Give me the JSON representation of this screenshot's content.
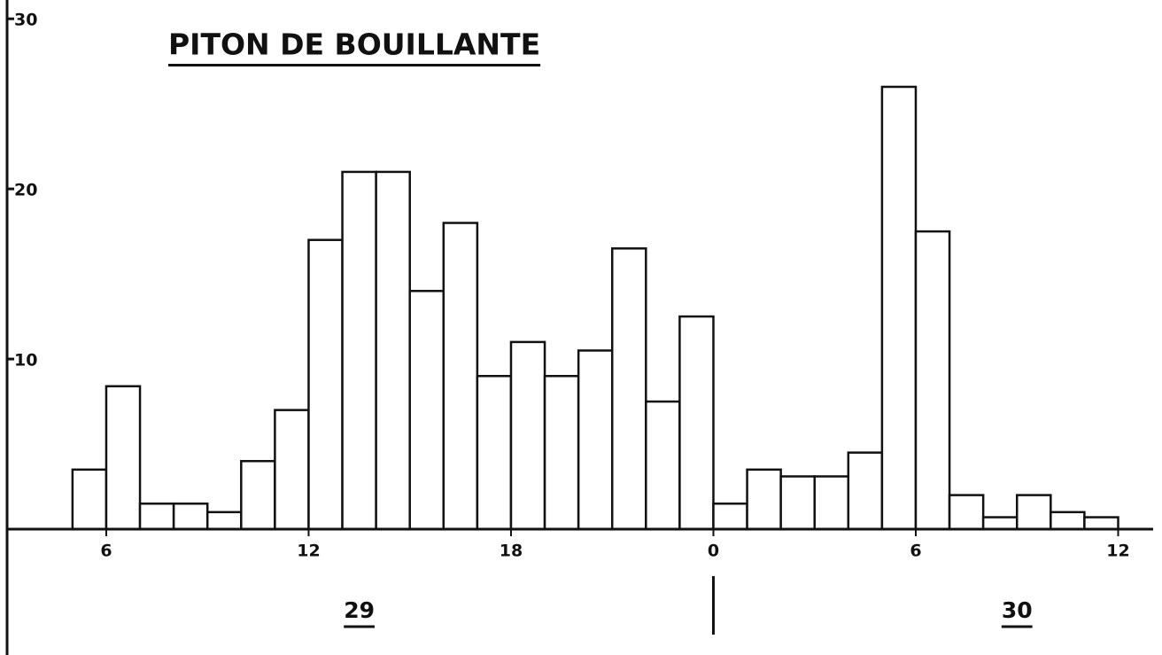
{
  "chart_data": {
    "type": "histogram",
    "title": "PITON DE BOUILLANTE",
    "bins": [
      5,
      6,
      7,
      8,
      9,
      10,
      11,
      12,
      13,
      14,
      15,
      16,
      17,
      18,
      19,
      20,
      21,
      22,
      23,
      24,
      25,
      26,
      27,
      28,
      29,
      30,
      31,
      32,
      33,
      34,
      35,
      36
    ],
    "values": [
      3.5,
      8.4,
      1.5,
      1.5,
      1,
      4,
      7,
      17,
      21,
      21,
      14,
      18,
      9,
      11,
      9,
      10.5,
      16.5,
      7.5,
      12.5,
      1.5,
      3.5,
      3.1,
      3.1,
      4.5,
      26,
      17.5,
      2,
      0.7,
      2,
      1,
      0.7
    ],
    "color": "#ffffff",
    "xlim": [
      2.85,
      37.3
    ],
    "ylim": [
      0,
      31
    ],
    "xticks": [
      6,
      12,
      18,
      {
        "value": 24,
        "label": "0"
      },
      {
        "value": 30,
        "label": "6"
      },
      {
        "value": 36,
        "label": "12"
      }
    ],
    "yticks": [
      10,
      20,
      30
    ],
    "day_labels": [
      {
        "value": 13.5,
        "label": "29"
      },
      {
        "value": 33,
        "label": "30"
      }
    ],
    "day_divider": 24
  }
}
